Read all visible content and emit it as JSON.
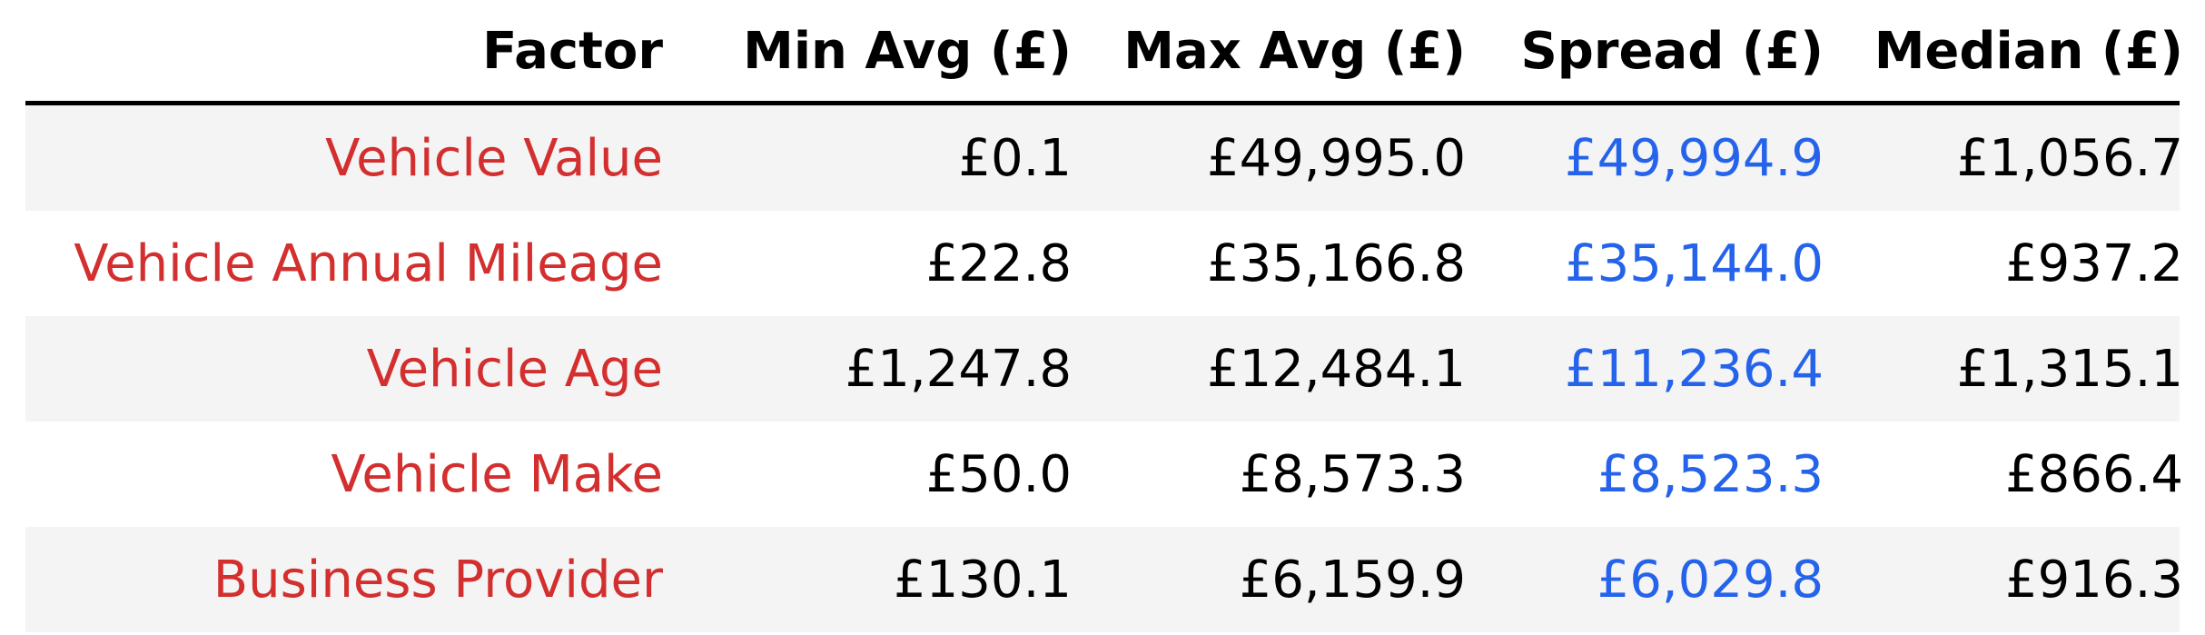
{
  "colors": {
    "factor_text": "#d32f2f",
    "spread_text": "#2563eb",
    "default_text": "#000000",
    "stripe": "#f4f4f4",
    "background": "#ffffff",
    "rule": "#000000"
  },
  "chart_data": {
    "type": "table",
    "columns": [
      "Factor",
      "Min Avg (£)",
      "Max Avg (£)",
      "Spread (£)",
      "Median (£)"
    ],
    "rows": [
      [
        "Vehicle Value",
        "£0.1",
        "£49,995.0",
        "£49,994.9",
        "£1,056.7"
      ],
      [
        "Vehicle Annual Mileage",
        "£22.8",
        "£35,166.8",
        "£35,144.0",
        "£937.2"
      ],
      [
        "Vehicle Age",
        "£1,247.8",
        "£12,484.1",
        "£11,236.4",
        "£1,315.1"
      ],
      [
        "Vehicle Make",
        "£50.0",
        "£8,573.3",
        "£8,523.3",
        "£866.4"
      ],
      [
        "Business Provider",
        "£130.1",
        "£6,159.9",
        "£6,029.8",
        "£916.3"
      ]
    ]
  }
}
